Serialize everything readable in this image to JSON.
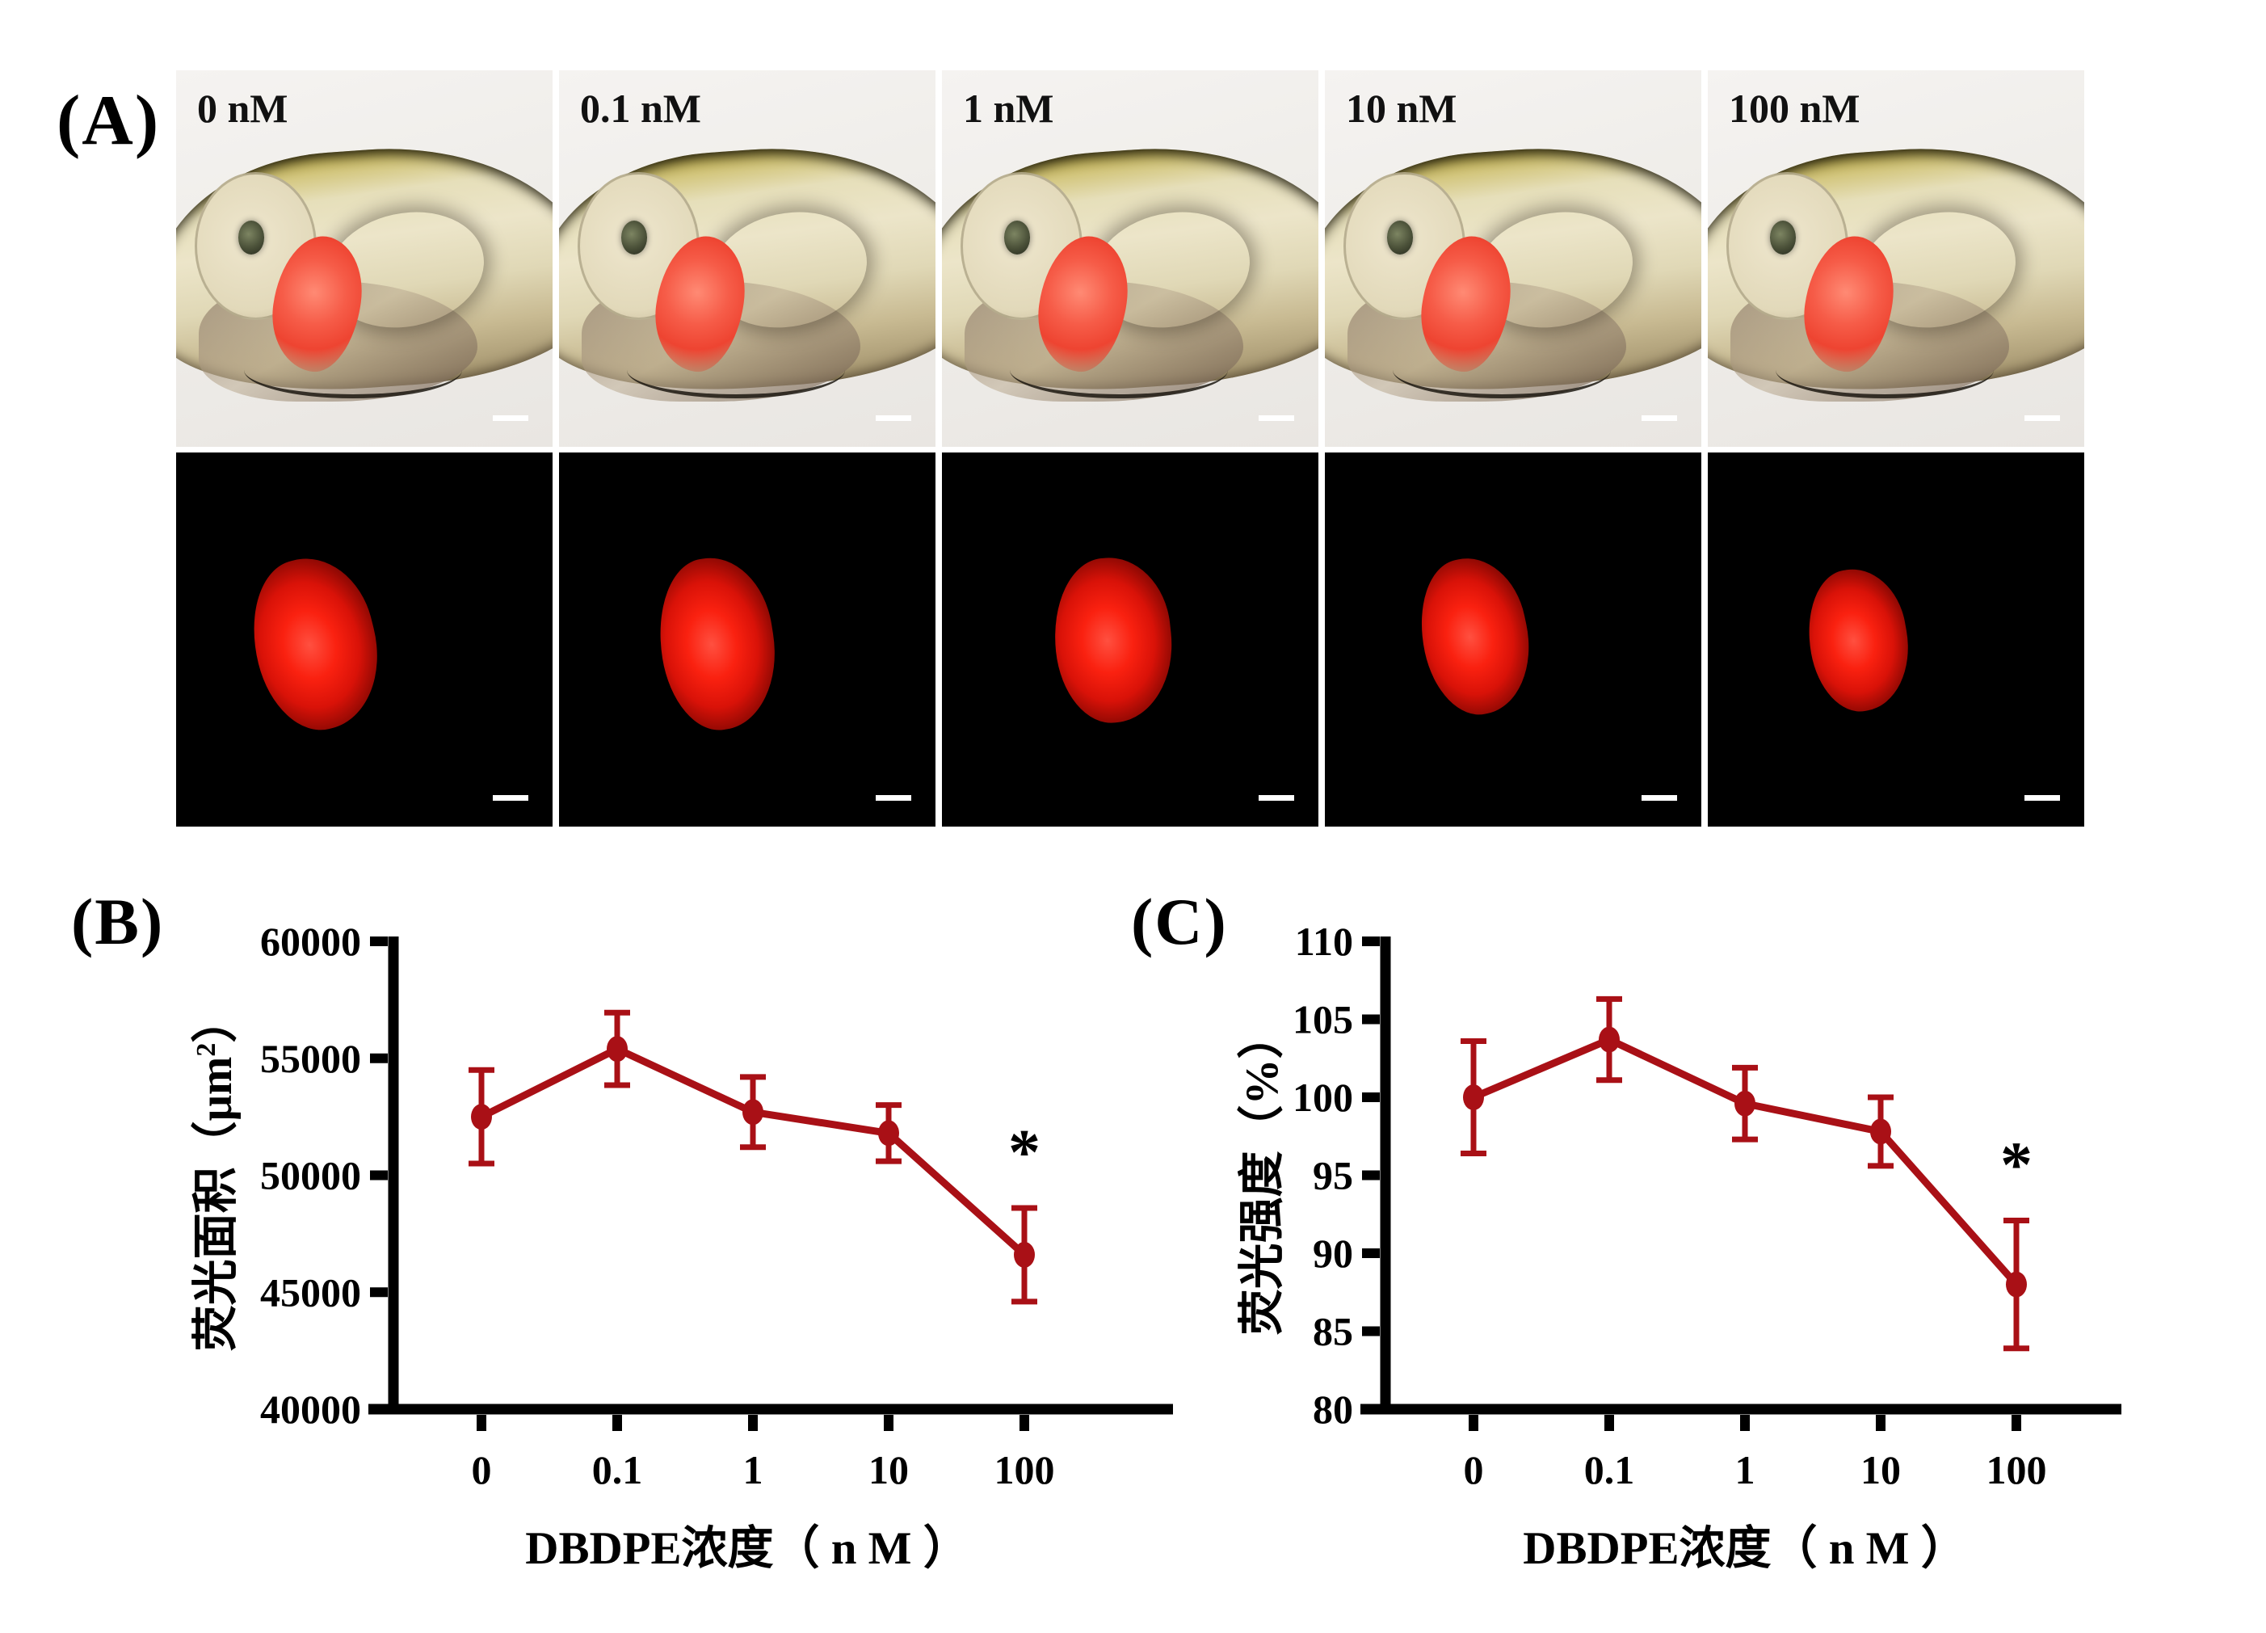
{
  "figure": {
    "background": "#ffffff",
    "accent_red": "#A91016"
  },
  "panels": {
    "A": {
      "label": "(A)",
      "concentrations": [
        "0 nM",
        "0.1 nM",
        "1 nM",
        "10 nM",
        "100 nM"
      ],
      "rows": [
        "brightfield",
        "fluorescence"
      ]
    },
    "B": {
      "label": "(B)"
    },
    "C": {
      "label": "(C)"
    }
  },
  "chart_data": [
    {
      "id": "B",
      "type": "line",
      "title": "",
      "categories": [
        "0",
        "0.1",
        "1",
        "10",
        "100"
      ],
      "values": [
        52500,
        55400,
        52700,
        51800,
        46600
      ],
      "errors": [
        2000,
        1550,
        1500,
        1200,
        2000
      ],
      "ylim": [
        40000,
        60000
      ],
      "yticks": [
        40000,
        45000,
        50000,
        55000,
        60000
      ],
      "ytick_labels": [
        "40000",
        "45000",
        "50000",
        "55000",
        "60000"
      ],
      "xlabel": "DBDPE浓度（ n M ）",
      "ylabel": "荧光面积（μm²）",
      "ylabel_main": "荧光面积（μm",
      "ylabel_sup": "2",
      "ylabel_close": "）",
      "significance": [
        {
          "category": "100",
          "symbol": "*"
        }
      ],
      "line_color": "#A91016",
      "axis_color": "#000000",
      "grid": false,
      "legend_position": "none"
    },
    {
      "id": "C",
      "type": "line",
      "title": "",
      "categories": [
        "0",
        "0.1",
        "1",
        "10",
        "100"
      ],
      "values": [
        100.0,
        103.7,
        99.6,
        97.8,
        88.0
      ],
      "errors": [
        3.6,
        2.6,
        2.3,
        2.2,
        4.1
      ],
      "ylim": [
        80,
        110
      ],
      "yticks": [
        80,
        85,
        90,
        95,
        100,
        105,
        110
      ],
      "ytick_labels": [
        "80",
        "85",
        "90",
        "95",
        "100",
        "105",
        "110"
      ],
      "xlabel": "DBDPE浓度（ n M ）",
      "ylabel": "荧光强度（%）",
      "ylabel_main": "荧光强度（%）",
      "ylabel_sup": "",
      "ylabel_close": "",
      "significance": [
        {
          "category": "100",
          "symbol": "*"
        }
      ],
      "line_color": "#A91016",
      "axis_color": "#000000",
      "grid": false,
      "legend_position": "none"
    }
  ]
}
